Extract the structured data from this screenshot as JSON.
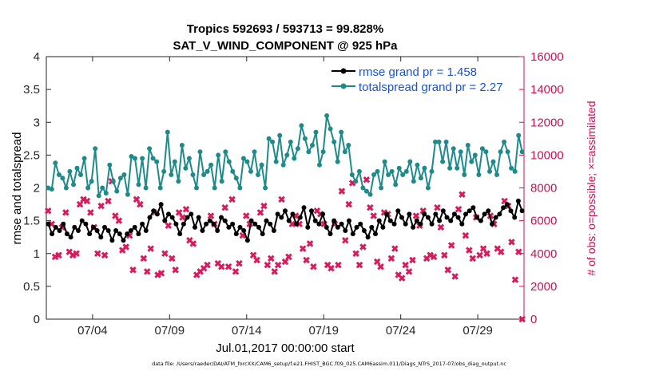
{
  "chart_data": {
    "type": "line",
    "title_line1": "Tropics 592693 / 593713 = 99.828%",
    "title_line2": "SAT_V_WIND_COMPONENT @ 925 hPa",
    "xlabel": "Jul.01,2017 00:00:00 start",
    "ylabel_left": "rmse and totalspread",
    "ylabel_right": "# of obs: o=possible; ×=assimilated",
    "xlim": [
      1.0,
      32.0
    ],
    "ylim_left": [
      0,
      4
    ],
    "ylim_right": [
      0,
      16000
    ],
    "x_ticks": [
      {
        "label": "07/04",
        "x": 4
      },
      {
        "label": "07/09",
        "x": 9
      },
      {
        "label": "07/14",
        "x": 14
      },
      {
        "label": "07/19",
        "x": 19
      },
      {
        "label": "07/24",
        "x": 24
      },
      {
        "label": "07/29",
        "x": 29
      }
    ],
    "y_ticks_left": [
      {
        "label": "0",
        "v": 0
      },
      {
        "label": "0.5",
        "v": 0.5
      },
      {
        "label": "1",
        "v": 1
      },
      {
        "label": "1.5",
        "v": 1.5
      },
      {
        "label": "2",
        "v": 2
      },
      {
        "label": "2.5",
        "v": 2.5
      },
      {
        "label": "3",
        "v": 3
      },
      {
        "label": "3.5",
        "v": 3.5
      },
      {
        "label": "4",
        "v": 4
      }
    ],
    "y_ticks_right": [
      {
        "label": "0",
        "v": 0
      },
      {
        "label": "2000",
        "v": 2000
      },
      {
        "label": "4000",
        "v": 4000
      },
      {
        "label": "6000",
        "v": 6000
      },
      {
        "label": "8000",
        "v": 8000
      },
      {
        "label": "10000",
        "v": 10000
      },
      {
        "label": "12000",
        "v": 12000
      },
      {
        "label": "14000",
        "v": 14000
      },
      {
        "label": "16000",
        "v": 16000
      }
    ],
    "series": [
      {
        "name": "rmse grand pr = 1.458",
        "color": "#000000",
        "values": [
          1.45,
          1.3,
          1.4,
          1.35,
          1.45,
          1.3,
          1.25,
          1.4,
          1.35,
          1.5,
          1.45,
          1.3,
          1.4,
          1.35,
          1.25,
          1.4,
          1.35,
          1.2,
          1.35,
          1.3,
          1.2,
          1.3,
          1.35,
          1.4,
          1.3,
          1.45,
          1.35,
          1.55,
          1.65,
          1.6,
          1.75,
          1.5,
          1.6,
          1.55,
          1.45,
          1.3,
          1.45,
          1.55,
          1.6,
          1.4,
          1.55,
          1.35,
          1.45,
          1.5,
          1.45,
          1.35,
          1.55,
          1.5,
          1.4,
          1.45,
          1.3,
          1.4,
          1.35,
          1.2,
          1.5,
          1.45,
          1.4,
          1.3,
          1.5,
          1.45,
          1.35,
          1.6,
          1.55,
          1.65,
          1.5,
          1.6,
          1.45,
          1.55,
          1.7,
          1.4,
          1.65,
          1.5,
          1.45,
          1.6,
          1.4,
          1.3,
          1.5,
          1.4,
          1.45,
          1.35,
          1.5,
          1.3,
          1.4,
          1.45,
          1.35,
          1.25,
          1.4,
          1.3,
          1.5,
          1.4,
          1.6,
          1.5,
          1.45,
          1.65,
          1.55,
          1.45,
          1.6,
          1.4,
          1.5,
          1.45,
          1.6,
          1.55,
          1.45,
          1.6,
          1.5,
          1.65,
          1.55,
          1.5,
          1.6,
          1.55,
          1.45,
          1.6,
          1.65,
          1.7,
          1.55,
          1.5,
          1.6,
          1.65,
          1.45,
          1.55,
          1.6,
          1.7,
          1.75,
          1.65,
          1.55,
          1.8,
          1.65
        ]
      },
      {
        "name": "totalspread grand pr = 2.27",
        "color": "#1f8a8a",
        "values": [
          2.0,
          1.98,
          2.38,
          2.2,
          2.15,
          2.0,
          2.25,
          2.05,
          2.3,
          2.2,
          2.45,
          2.0,
          2.1,
          2.6,
          1.88,
          2.0,
          1.92,
          2.35,
          2.1,
          1.95,
          2.15,
          2.2,
          1.9,
          2.48,
          2.45,
          2.05,
          2.45,
          2.0,
          2.6,
          2.45,
          2.4,
          2.0,
          2.25,
          2.85,
          2.2,
          2.4,
          2.1,
          2.65,
          2.3,
          2.45,
          2.2,
          2.0,
          2.55,
          2.2,
          2.25,
          2.35,
          2.0,
          2.5,
          2.1,
          2.55,
          2.4,
          2.25,
          2.15,
          2.0,
          2.45,
          2.4,
          2.25,
          2.55,
          2.2,
          2.35,
          2.0,
          2.75,
          2.7,
          2.4,
          2.8,
          2.35,
          2.5,
          2.7,
          2.45,
          2.6,
          2.95,
          2.75,
          2.55,
          2.65,
          2.85,
          2.35,
          2.55,
          3.1,
          2.9,
          2.7,
          2.4,
          2.85,
          2.55,
          2.65,
          2.2,
          2.1,
          2.25,
          2.0,
          1.95,
          1.9,
          2.2,
          2.25,
          2.0,
          2.4,
          2.2,
          2.25,
          2.05,
          2.3,
          2.2,
          2.25,
          2.4,
          2.1,
          2.35,
          2.15,
          2.3,
          2.0,
          2.25,
          2.7,
          2.7,
          2.4,
          2.7,
          2.3,
          2.6,
          2.3,
          2.55,
          2.2,
          2.65,
          2.4,
          2.5,
          2.2,
          2.6,
          2.55,
          2.25,
          2.4,
          2.2,
          2.55,
          2.7,
          2.55,
          2.3,
          2.25,
          2.8,
          2.55
        ]
      }
    ],
    "obs_assimilated": {
      "name": "assimilated",
      "color": "#d81b5d",
      "values": [
        6600,
        5800,
        3800,
        3900,
        5600,
        6500,
        4100,
        3900,
        4000,
        7000,
        7300,
        7200,
        6500,
        5600,
        4000,
        6900,
        3900,
        7200,
        8400,
        6300,
        6000,
        4200,
        4400,
        5100,
        3000,
        7300,
        7000,
        3700,
        2900,
        4300,
        6500,
        2700,
        2800,
        4000,
        5700,
        3700,
        3000,
        6500,
        6200,
        6700,
        4800,
        4600,
        2700,
        2900,
        3100,
        3300,
        6300,
        5800,
        3400,
        3200,
        6800,
        3200,
        7300,
        2900,
        3400,
        5100,
        6300,
        5800,
        3900,
        3600,
        6500,
        6900,
        3300,
        3700,
        2900,
        3300,
        7300,
        3500,
        3800,
        5800,
        6300,
        5800,
        4300,
        3600,
        4600,
        3200,
        6600,
        6400,
        5800,
        3300,
        3100,
        5800,
        3300,
        7800,
        4800,
        7000,
        8300,
        4000,
        3300,
        4400,
        8500,
        6800,
        6300,
        3500,
        3200,
        6500,
        6400,
        3700,
        4300,
        2700,
        2500,
        3300,
        2900,
        3600,
        6300,
        5700,
        6600,
        3700,
        3900,
        3800,
        6800,
        5600,
        3900,
        3000,
        4500,
        2600,
        6700,
        7600,
        5100,
        4200,
        3700,
        6200,
        3900,
        4300,
        4000,
        6300,
        5800,
        4300,
        4100,
        7200,
        6900,
        4700,
        2400,
        4100,
        0
      ]
    },
    "legend_location": "top-right",
    "footnote": "data file: /Users/raeder/DAI/ATM_forcXX/CAM6_setup/f.e21.FHIST_BGC.f09_025.CAM6assim.011/Diags_NTrS_2017-07/obs_diag_output.nc"
  }
}
